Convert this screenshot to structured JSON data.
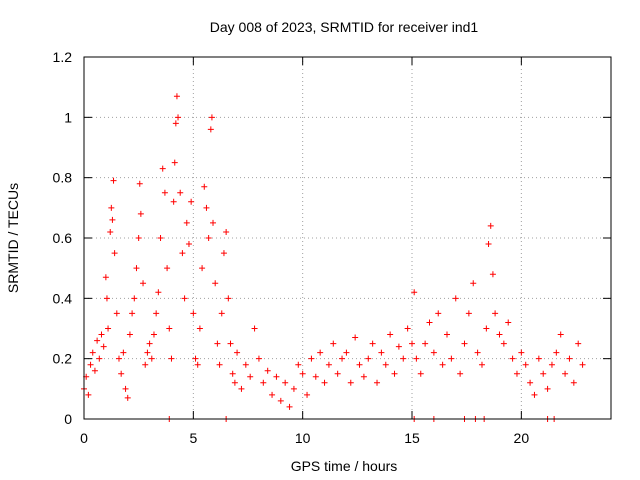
{
  "chart_data": {
    "type": "scatter",
    "title": "Day 008 of 2023, SRMTID for receiver ind1",
    "xlabel": "GPS time / hours",
    "ylabel": "SRMTID / TECUs",
    "xlim": [
      0,
      24.1
    ],
    "ylim": [
      0,
      1.2
    ],
    "x_ticks": [
      0,
      5,
      10,
      15,
      20
    ],
    "x_tick_labels": [
      "0",
      "5",
      "10",
      "15",
      "20"
    ],
    "y_ticks": [
      0,
      0.2,
      0.4,
      0.6,
      0.8,
      1,
      1.2
    ],
    "y_tick_labels": [
      "0",
      "0.2",
      "0.4",
      "0.6",
      "0.8",
      "1",
      "1.2"
    ],
    "grid": true,
    "series": [
      {
        "name": "SRMTID",
        "color": "#ff0000",
        "marker": "plus",
        "points": [
          [
            0.0,
            0.1
          ],
          [
            0.1,
            0.14
          ],
          [
            0.2,
            0.08
          ],
          [
            0.3,
            0.18
          ],
          [
            0.4,
            0.22
          ],
          [
            0.5,
            0.16
          ],
          [
            0.6,
            0.26
          ],
          [
            0.7,
            0.2
          ],
          [
            0.8,
            0.28
          ],
          [
            0.9,
            0.24
          ],
          [
            1.0,
            0.47
          ],
          [
            1.05,
            0.4
          ],
          [
            1.1,
            0.3
          ],
          [
            1.2,
            0.62
          ],
          [
            1.25,
            0.7
          ],
          [
            1.3,
            0.66
          ],
          [
            1.35,
            0.79
          ],
          [
            1.4,
            0.55
          ],
          [
            1.5,
            0.35
          ],
          [
            1.6,
            0.2
          ],
          [
            1.7,
            0.15
          ],
          [
            1.8,
            0.22
          ],
          [
            1.9,
            0.1
          ],
          [
            2.0,
            0.07
          ],
          [
            2.1,
            0.28
          ],
          [
            2.2,
            0.35
          ],
          [
            2.3,
            0.4
          ],
          [
            2.4,
            0.5
          ],
          [
            2.5,
            0.6
          ],
          [
            2.55,
            0.78
          ],
          [
            2.6,
            0.68
          ],
          [
            2.7,
            0.45
          ],
          [
            2.8,
            0.18
          ],
          [
            2.9,
            0.22
          ],
          [
            3.0,
            0.25
          ],
          [
            3.1,
            0.2
          ],
          [
            3.2,
            0.28
          ],
          [
            3.3,
            0.35
          ],
          [
            3.4,
            0.42
          ],
          [
            3.5,
            0.6
          ],
          [
            3.6,
            0.83
          ],
          [
            3.7,
            0.75
          ],
          [
            3.8,
            0.5
          ],
          [
            3.9,
            0.3
          ],
          [
            4.0,
            0.2
          ],
          [
            4.1,
            0.72
          ],
          [
            4.15,
            0.85
          ],
          [
            4.2,
            0.98
          ],
          [
            4.25,
            1.07
          ],
          [
            4.3,
            1.0
          ],
          [
            4.4,
            0.75
          ],
          [
            4.5,
            0.55
          ],
          [
            4.6,
            0.4
          ],
          [
            4.7,
            0.65
          ],
          [
            4.8,
            0.58
          ],
          [
            4.9,
            0.72
          ],
          [
            5.0,
            0.35
          ],
          [
            5.1,
            0.2
          ],
          [
            5.2,
            0.18
          ],
          [
            5.3,
            0.3
          ],
          [
            5.4,
            0.5
          ],
          [
            5.5,
            0.77
          ],
          [
            5.6,
            0.7
          ],
          [
            5.7,
            0.6
          ],
          [
            5.8,
            0.96
          ],
          [
            5.85,
            1.0
          ],
          [
            5.9,
            0.65
          ],
          [
            6.0,
            0.45
          ],
          [
            6.1,
            0.25
          ],
          [
            6.2,
            0.18
          ],
          [
            6.3,
            0.35
          ],
          [
            6.4,
            0.55
          ],
          [
            6.5,
            0.62
          ],
          [
            6.6,
            0.4
          ],
          [
            6.7,
            0.25
          ],
          [
            6.8,
            0.15
          ],
          [
            6.9,
            0.12
          ],
          [
            7.0,
            0.22
          ],
          [
            7.2,
            0.1
          ],
          [
            7.4,
            0.18
          ],
          [
            7.6,
            0.14
          ],
          [
            7.8,
            0.3
          ],
          [
            8.0,
            0.2
          ],
          [
            8.2,
            0.12
          ],
          [
            8.4,
            0.16
          ],
          [
            8.6,
            0.08
          ],
          [
            8.8,
            0.14
          ],
          [
            9.0,
            0.06
          ],
          [
            9.2,
            0.12
          ],
          [
            9.4,
            0.04
          ],
          [
            9.6,
            0.1
          ],
          [
            9.8,
            0.18
          ],
          [
            10.0,
            0.15
          ],
          [
            10.2,
            0.08
          ],
          [
            10.4,
            0.2
          ],
          [
            10.6,
            0.14
          ],
          [
            10.8,
            0.22
          ],
          [
            11.0,
            0.12
          ],
          [
            11.2,
            0.18
          ],
          [
            11.4,
            0.25
          ],
          [
            11.6,
            0.15
          ],
          [
            11.8,
            0.2
          ],
          [
            12.0,
            0.22
          ],
          [
            12.2,
            0.12
          ],
          [
            12.4,
            0.27
          ],
          [
            12.6,
            0.18
          ],
          [
            12.8,
            0.14
          ],
          [
            13.0,
            0.2
          ],
          [
            13.2,
            0.25
          ],
          [
            13.4,
            0.12
          ],
          [
            13.6,
            0.22
          ],
          [
            13.8,
            0.18
          ],
          [
            14.0,
            0.28
          ],
          [
            14.2,
            0.15
          ],
          [
            14.4,
            0.24
          ],
          [
            14.6,
            0.2
          ],
          [
            14.8,
            0.3
          ],
          [
            15.0,
            0.25
          ],
          [
            15.1,
            0.42
          ],
          [
            15.2,
            0.2
          ],
          [
            15.4,
            0.15
          ],
          [
            15.6,
            0.25
          ],
          [
            15.8,
            0.32
          ],
          [
            16.0,
            0.22
          ],
          [
            16.2,
            0.35
          ],
          [
            16.4,
            0.18
          ],
          [
            16.6,
            0.28
          ],
          [
            16.8,
            0.2
          ],
          [
            17.0,
            0.4
          ],
          [
            17.2,
            0.15
          ],
          [
            17.4,
            0.25
          ],
          [
            17.6,
            0.35
          ],
          [
            17.8,
            0.45
          ],
          [
            18.0,
            0.22
          ],
          [
            18.2,
            0.18
          ],
          [
            18.4,
            0.3
          ],
          [
            18.5,
            0.58
          ],
          [
            18.6,
            0.64
          ],
          [
            18.7,
            0.48
          ],
          [
            18.8,
            0.35
          ],
          [
            19.0,
            0.28
          ],
          [
            19.2,
            0.25
          ],
          [
            19.4,
            0.32
          ],
          [
            19.6,
            0.2
          ],
          [
            19.8,
            0.15
          ],
          [
            20.0,
            0.22
          ],
          [
            20.2,
            0.18
          ],
          [
            20.4,
            0.12
          ],
          [
            20.6,
            0.08
          ],
          [
            20.8,
            0.2
          ],
          [
            21.0,
            0.15
          ],
          [
            21.2,
            0.1
          ],
          [
            21.4,
            0.18
          ],
          [
            21.6,
            0.22
          ],
          [
            21.8,
            0.28
          ],
          [
            22.0,
            0.15
          ],
          [
            22.2,
            0.2
          ],
          [
            22.4,
            0.12
          ],
          [
            22.6,
            0.25
          ],
          [
            22.8,
            0.18
          ],
          [
            3.9,
            0.0
          ],
          [
            6.5,
            0.0
          ],
          [
            15.1,
            0.0
          ],
          [
            16.0,
            0.0
          ],
          [
            17.4,
            0.0
          ],
          [
            17.9,
            0.0
          ],
          [
            18.3,
            0.0
          ],
          [
            21.2,
            0.0
          ],
          [
            21.5,
            0.0
          ]
        ]
      }
    ]
  }
}
